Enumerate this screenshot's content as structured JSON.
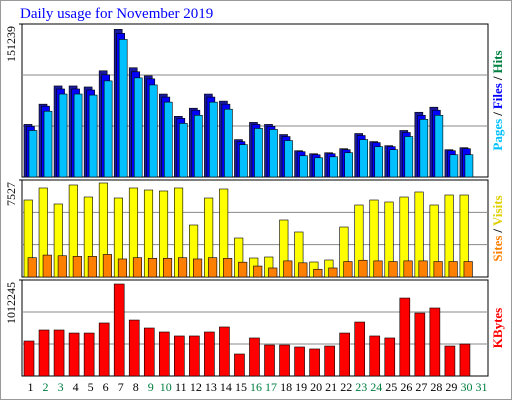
{
  "title": "Daily usage for November 2019",
  "legend_separator": "/",
  "chart_data": [
    {
      "type": "bar",
      "ylim": [
        0,
        151239
      ],
      "yticks": [
        151239
      ],
      "series": [
        {
          "name": "Hits",
          "color": "#1a1a9c",
          "label_color": "#008040",
          "values": [
            52000,
            72000,
            90000,
            90000,
            89000,
            105000,
            146000,
            108000,
            100000,
            82000,
            60000,
            68000,
            82000,
            75000,
            37000,
            54000,
            52000,
            42000,
            26000,
            23000,
            24000,
            28000,
            43000,
            35000,
            31000,
            46000,
            64000,
            69000,
            27000,
            29000,
            null
          ]
        },
        {
          "name": "Files",
          "color": "#0000ff",
          "label_color": "#0000ff",
          "values": [
            50000,
            70000,
            87000,
            87000,
            86000,
            101000,
            142000,
            104000,
            97000,
            79000,
            58000,
            66000,
            79000,
            72000,
            35000,
            52000,
            50000,
            40000,
            25000,
            22000,
            23000,
            27000,
            41000,
            34000,
            30000,
            44000,
            61000,
            66000,
            26000,
            28000,
            null
          ]
        },
        {
          "name": "Pages",
          "color": "#00c0ff",
          "label_color": "#00c0ff",
          "values": [
            46000,
            65000,
            82000,
            82000,
            81000,
            95000,
            136000,
            98000,
            91000,
            74000,
            53000,
            61000,
            74000,
            67000,
            32000,
            48000,
            47000,
            36000,
            21000,
            19000,
            20000,
            24000,
            37000,
            30000,
            27000,
            40000,
            57000,
            61000,
            22000,
            22000,
            null
          ]
        }
      ]
    },
    {
      "type": "bar",
      "ylim": [
        0,
        7527
      ],
      "yticks": [
        7527
      ],
      "series": [
        {
          "name": "Visits",
          "color": "#ffff00",
          "label_color": "#e0d000",
          "values": [
            5975,
            6907,
            5665,
            7140,
            6208,
            7294,
            6130,
            6907,
            6751,
            6674,
            6907,
            4035,
            6130,
            6829,
            3026,
            1474,
            1552,
            4423,
            3492,
            1164,
            1319,
            3880,
            5587,
            5975,
            5820,
            6208,
            6596,
            5587,
            6363,
            6363,
            null
          ]
        },
        {
          "name": "Sites",
          "color": "#ff8000",
          "label_color": "#ff8000",
          "values": [
            1500,
            1700,
            1650,
            1600,
            1600,
            1750,
            1400,
            1500,
            1450,
            1450,
            1500,
            1400,
            1500,
            1450,
            1150,
            850,
            700,
            1250,
            1100,
            600,
            700,
            1200,
            1300,
            1250,
            1200,
            1250,
            1250,
            1200,
            1200,
            1200,
            null
          ]
        }
      ]
    },
    {
      "type": "bar",
      "ylim": [
        0,
        1012245
      ],
      "yticks": [
        1012245
      ],
      "categories": [
        "1",
        "2",
        "3",
        "4",
        "5",
        "6",
        "7",
        "8",
        "9",
        "10",
        "11",
        "12",
        "13",
        "14",
        "15",
        "16",
        "17",
        "18",
        "19",
        "20",
        "21",
        "22",
        "23",
        "24",
        "25",
        "26",
        "27",
        "28",
        "29",
        "30",
        "31"
      ],
      "category_colors": [
        "#000000",
        "#008040",
        "#008040",
        "#000000",
        "#000000",
        "#000000",
        "#000000",
        "#000000",
        "#008040",
        "#008040",
        "#000000",
        "#000000",
        "#000000",
        "#000000",
        "#000000",
        "#008040",
        "#008040",
        "#000000",
        "#000000",
        "#000000",
        "#000000",
        "#000000",
        "#008040",
        "#008040",
        "#000000",
        "#000000",
        "#000000",
        "#000000",
        "#000000",
        "#008040",
        "#008040"
      ],
      "series": [
        {
          "name": "KBytes",
          "color": "#ff0000",
          "label_color": "#ff0000",
          "values": [
            369000,
            485000,
            485000,
            453000,
            453000,
            559000,
            970000,
            590000,
            506000,
            464000,
            422000,
            422000,
            464000,
            517000,
            232000,
            401000,
            327000,
            327000,
            306000,
            285000,
            316000,
            453000,
            569000,
            422000,
            401000,
            822000,
            664000,
            717000,
            316000,
            337000,
            null
          ]
        }
      ]
    }
  ]
}
